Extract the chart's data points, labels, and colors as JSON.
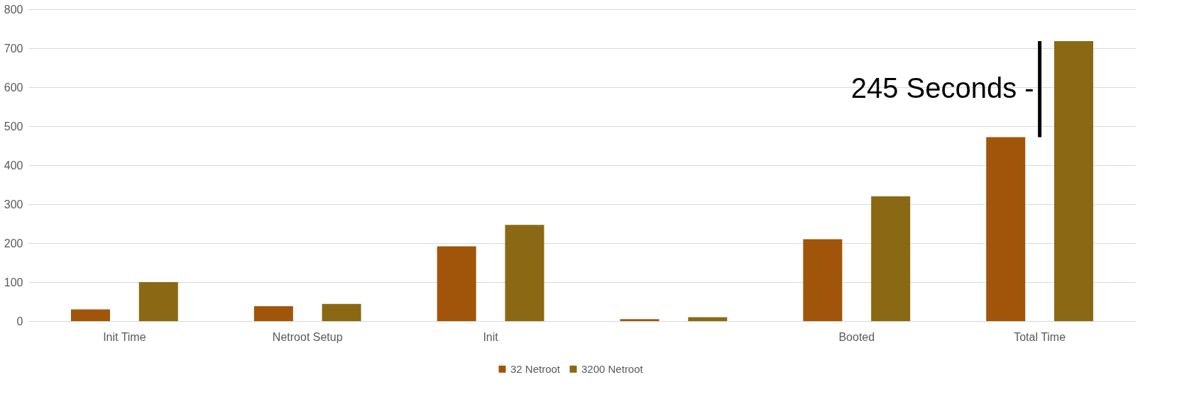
{
  "chart_data": {
    "type": "bar",
    "categories": [
      "Init Time",
      "Netroot Setup",
      "Init",
      null,
      "Booted",
      "Total Time"
    ],
    "series": [
      {
        "name": "32 Netroot",
        "color": "#a0550a",
        "values": [
          30,
          38,
          192,
          5,
          210,
          472
        ]
      },
      {
        "name": "3200 Netroot",
        "color": "#8b6914",
        "values": [
          100,
          44,
          247,
          10,
          320,
          718
        ]
      }
    ],
    "ylim": [
      0,
      800
    ],
    "yticks": [
      0,
      100,
      200,
      300,
      400,
      500,
      600,
      700,
      800
    ],
    "grid": "y",
    "legend": "bottom",
    "annotations": [
      "245 Seconds -"
    ]
  }
}
